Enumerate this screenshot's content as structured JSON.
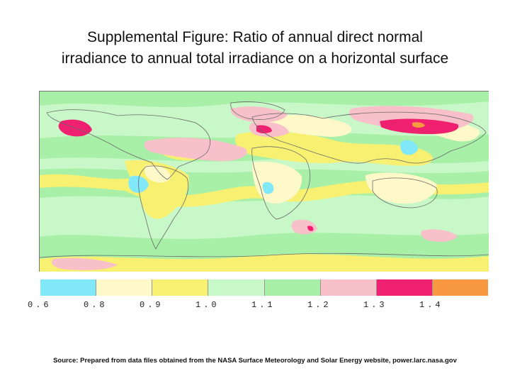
{
  "title_line1": "Supplemental Figure: Ratio of annual direct normal",
  "title_line2": "irradiance to annual total irradiance on a horizontal surface",
  "legend": {
    "colors": [
      "#80e8f8",
      "#fff8c8",
      "#f8f070",
      "#c8f8c8",
      "#a8f0a8",
      "#f8c0c8",
      "#f02070",
      "#f89840"
    ],
    "ticks": [
      "0.6",
      "0.8",
      "0.9",
      "1.0",
      "1.1",
      "1.2",
      "1.3",
      "1.4"
    ]
  },
  "source": "Source: Prepared from data files obtained from the NASA Surface Meteorology and Solar Energy website, power.larc.nasa.gov"
}
